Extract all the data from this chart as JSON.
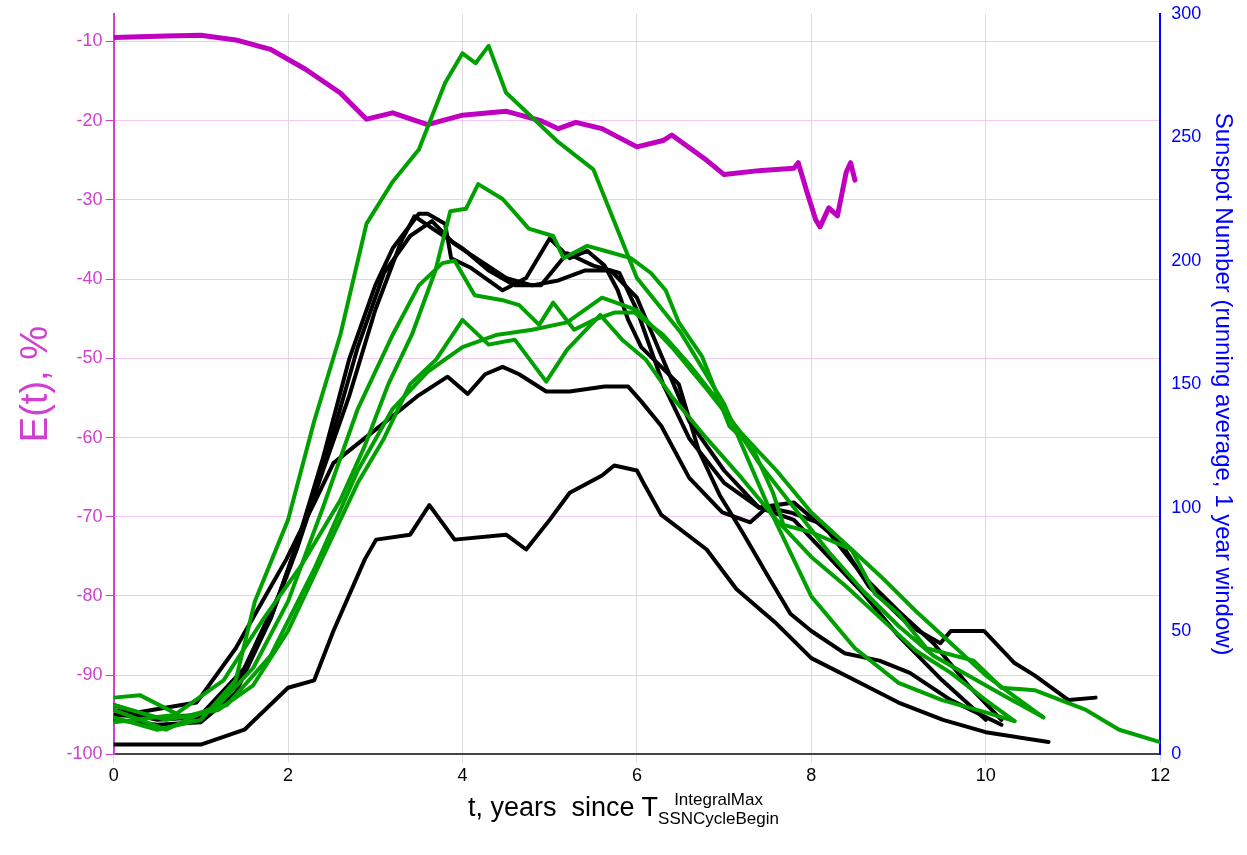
{
  "chart_data": {
    "type": "line",
    "xlabel": "t, years  since T$^{IntegralMax}$$_{SSNCycleBegin}$",
    "ylabel": "E(t), %",
    "y2label": "Sunspot Number (running average, 1 year window)",
    "xlim": [
      0,
      12
    ],
    "xticks": [
      0,
      2,
      4,
      6,
      8,
      10,
      12
    ],
    "ylim": [
      -100,
      -6.5
    ],
    "yticks": [
      -100,
      -90,
      -80,
      -70,
      -60,
      -50,
      -40,
      -30,
      -20,
      -10
    ],
    "y2lim": [
      0,
      300
    ],
    "y2ticks": [
      0,
      50,
      100,
      150,
      200,
      250,
      300
    ],
    "grid": true,
    "legend": false,
    "marker": "none",
    "line_style": "solid",
    "series": [
      {
        "color": "#00a000",
        "axis": "y2",
        "x": [
          0,
          0.5,
          1,
          1.4,
          1.62,
          2.0,
          2.3,
          2.6,
          2.9,
          3.2,
          3.5,
          3.8,
          4.0,
          4.15,
          4.3,
          4.5,
          4.8,
          5.1,
          5.5,
          6.0,
          6.5,
          7.0,
          7.5,
          8.0,
          8.5,
          9.0,
          9.5,
          10.0,
          10.33
        ],
        "values": [
          15,
          10,
          14,
          30,
          62,
          95,
          135,
          170,
          215,
          232,
          245,
          272,
          284,
          280,
          287,
          268,
          258,
          248,
          237,
          193,
          171,
          142,
          101,
          64,
          43,
          29,
          22,
          17,
          13.5
        ]
      },
      {
        "color": "#00a000",
        "axis": "y2",
        "x": [
          0,
          0.7,
          1.26,
          1.72,
          2.16,
          2.6,
          2.88,
          3.15,
          3.42,
          3.69,
          3.86,
          4.04,
          4.18,
          4.46,
          4.76,
          5.04,
          5.16,
          5.43,
          5.63,
          5.93,
          6.16,
          6.33,
          6.48,
          6.75,
          7.06,
          7.33,
          7.56,
          7.68,
          8.0,
          8.46,
          8.73,
          9.0,
          9.32,
          9.86,
          10.18,
          10.56,
          11.15,
          11.53,
          12
        ],
        "values": [
          13,
          16,
          30,
          55,
          77,
          103,
          125,
          150,
          170,
          196,
          220,
          221,
          231,
          225,
          213,
          210,
          201,
          206,
          204,
          201,
          195,
          188,
          175,
          161,
          133,
          124,
          106,
          93,
          90,
          83,
          65,
          57,
          43,
          38,
          27,
          26,
          18,
          10,
          5
        ]
      },
      {
        "color": "#00a000",
        "axis": "y2",
        "x": [
          0,
          0.6,
          1.2,
          1.6,
          2.0,
          2.4,
          2.8,
          3.2,
          3.5,
          3.77,
          3.91,
          4.14,
          4.46,
          4.65,
          4.88,
          5.04,
          5.28,
          5.51,
          5.74,
          5.97,
          6.3,
          6.6,
          7.0,
          7.4,
          7.8,
          8.2,
          8.6,
          9.0,
          9.4,
          9.8,
          10.2,
          10.66
        ],
        "values": [
          18,
          10,
          20,
          35,
          62,
          100,
          140,
          170,
          190,
          199,
          200,
          186,
          184,
          182,
          174,
          183,
          172,
          176,
          179,
          179,
          170,
          158,
          140,
          118,
          100,
          82,
          66,
          52,
          40,
          32,
          24,
          15
        ]
      },
      {
        "color": "#00a000",
        "axis": "y2",
        "x": [
          0,
          0.6,
          1.2,
          1.6,
          2.0,
          2.4,
          2.8,
          3.1,
          3.4,
          3.7,
          4.0,
          4.3,
          4.6,
          4.96,
          5.2,
          5.58,
          5.83,
          6.1,
          6.4,
          6.8,
          7.2,
          7.6,
          8.0,
          8.4,
          8.8,
          9.2,
          9.6,
          10.0,
          10.33
        ],
        "values": [
          20,
          14,
          18,
          28,
          50,
          80,
          110,
          128,
          150,
          160,
          176,
          166,
          168,
          151,
          164,
          178,
          168,
          160,
          145,
          128,
          112,
          95,
          80,
          68,
          55,
          42,
          33,
          22,
          13.5
        ]
      },
      {
        "color": "#00a000",
        "axis": "y2",
        "x": [
          0,
          0.3,
          0.8,
          1.3,
          1.8,
          2.3,
          2.8,
          3.2,
          3.6,
          4.0,
          4.4,
          4.8,
          5.2,
          5.6,
          6.0,
          6.4,
          6.8,
          7.2,
          7.6,
          8.0,
          8.4,
          8.8,
          9.2,
          9.6,
          10.0,
          10.66
        ],
        "values": [
          23,
          24,
          15,
          20,
          40,
          75,
          115,
          140,
          155,
          165,
          170,
          172,
          175,
          185,
          180,
          165,
          148,
          130,
          115,
          98,
          85,
          72,
          58,
          45,
          32,
          15
        ]
      },
      {
        "color": "#000000",
        "axis": "y2",
        "x": [
          0,
          0.5,
          1.0,
          1.4,
          1.8,
          2.1,
          2.4,
          2.7,
          3.0,
          3.2,
          3.5,
          3.6,
          3.8,
          3.87,
          4.1,
          4.46,
          4.73,
          5.0,
          5.23,
          5.43,
          5.63,
          5.78,
          5.9,
          6.05,
          6.48,
          6.71,
          6.95,
          7.21,
          7.49,
          7.76,
          8.0,
          8.38,
          8.78,
          9.13,
          9.6,
          10.18
        ],
        "values": [
          14,
          12,
          13,
          25,
          55,
          85,
          120,
          160,
          190,
          205,
          219,
          219,
          215,
          201,
          197,
          188,
          193,
          209,
          201,
          204,
          198,
          188,
          176,
          165,
          150,
          123,
          105,
          90,
          73,
          57,
          50,
          41,
          38,
          33,
          22,
          12
        ]
      },
      {
        "color": "#000000",
        "axis": "y2",
        "x": [
          0,
          0.5,
          1.0,
          1.4,
          1.8,
          2.1,
          2.4,
          2.7,
          3.0,
          3.3,
          3.45,
          3.7,
          4.0,
          4.3,
          4.6,
          4.9,
          5.2,
          5.5,
          5.8,
          6.0,
          6.3,
          6.6,
          7.0,
          7.4,
          7.8,
          8.2,
          8.6,
          9.0,
          9.5,
          10.0
        ],
        "values": [
          18,
          14,
          15,
          28,
          55,
          83,
          115,
          145,
          180,
          208,
          218,
          212,
          205,
          196,
          190,
          190,
          203,
          198,
          195,
          180,
          150,
          128,
          110,
          100,
          95,
          80,
          65,
          48,
          30,
          14
        ]
      },
      {
        "color": "#000000",
        "axis": "y2",
        "x": [
          0,
          0.5,
          1.0,
          1.5,
          1.9,
          2.2,
          2.5,
          2.8,
          3.1,
          3.4,
          3.65,
          3.9,
          4.2,
          4.5,
          4.8,
          5.1,
          5.4,
          5.7,
          6.0,
          6.3,
          6.6,
          7.0,
          7.4,
          7.8,
          8.2,
          8.6,
          9.0,
          9.4,
          9.8,
          10.18
        ],
        "values": [
          16,
          15,
          16,
          35,
          65,
          95,
          128,
          165,
          195,
          210,
          216,
          207,
          200,
          193,
          190,
          192,
          196,
          196,
          185,
          160,
          135,
          115,
          100,
          102,
          90,
          72,
          58,
          45,
          28,
          14
        ]
      },
      {
        "color": "#000000",
        "axis": "y2",
        "x": [
          0,
          0.27,
          0.95,
          1.4,
          1.98,
          2.33,
          2.52,
          3.09,
          3.48,
          3.83,
          4.06,
          4.26,
          4.46,
          4.65,
          4.96,
          5.23,
          5.63,
          5.9,
          6.05,
          6.28,
          6.6,
          6.98,
          7.3,
          7.49,
          7.76,
          8.15,
          8.35,
          8.66,
          9.13,
          9.48,
          9.6,
          9.98,
          10.33,
          10.56,
          10.95,
          11.26
        ],
        "values": [
          20,
          17,
          21,
          43,
          79,
          104,
          118,
          134,
          145,
          153,
          146,
          154,
          157,
          154,
          147,
          147,
          149,
          149,
          143,
          133,
          112,
          98,
          94,
          100,
          98,
          93,
          85,
          68,
          52,
          45,
          50,
          50,
          37,
          32,
          22,
          23
        ]
      },
      {
        "color": "#000000",
        "axis": "y2",
        "x": [
          0,
          1.0,
          1.5,
          2.0,
          2.3,
          2.52,
          2.88,
          3.01,
          3.4,
          3.62,
          3.91,
          4.5,
          4.73,
          5.0,
          5.23,
          5.6,
          5.74,
          6.0,
          6.09,
          6.28,
          6.8,
          7.14,
          7.6,
          8.0,
          8.5,
          9.0,
          9.51,
          10.0,
          10.72
        ],
        "values": [
          4,
          4,
          10,
          27,
          30,
          50,
          79,
          87,
          89,
          101,
          87,
          89,
          83,
          95,
          106,
          113,
          117,
          115,
          109,
          97,
          83,
          67,
          53,
          39,
          30,
          21,
          14,
          9,
          5
        ]
      },
      {
        "color": "#c000c0",
        "x": [
          0,
          0.6,
          1.0,
          1.4,
          1.8,
          2.2,
          2.6,
          2.9,
          3.2,
          3.6,
          4.0,
          4.5,
          4.9,
          5.1,
          5.3,
          5.6,
          6.0,
          6.3,
          6.4,
          6.8,
          7.0,
          7.4,
          7.8,
          7.85,
          7.95,
          8.05,
          8.1,
          8.2,
          8.3,
          8.4,
          8.45,
          8.5
        ],
        "values": [
          -9.5,
          -9.3,
          -9.2,
          -9.8,
          -11,
          -13.5,
          -16.5,
          -19.8,
          -19,
          -20.5,
          -19.3,
          -18.8,
          -20,
          -21,
          -20.2,
          -21,
          -23.3,
          -22.5,
          -21.8,
          -25,
          -26.8,
          -26.3,
          -26,
          -25.3,
          -29,
          -32.5,
          -33.4,
          -31,
          -32,
          -26.5,
          -25.3,
          -27.5
        ]
      }
    ]
  }
}
